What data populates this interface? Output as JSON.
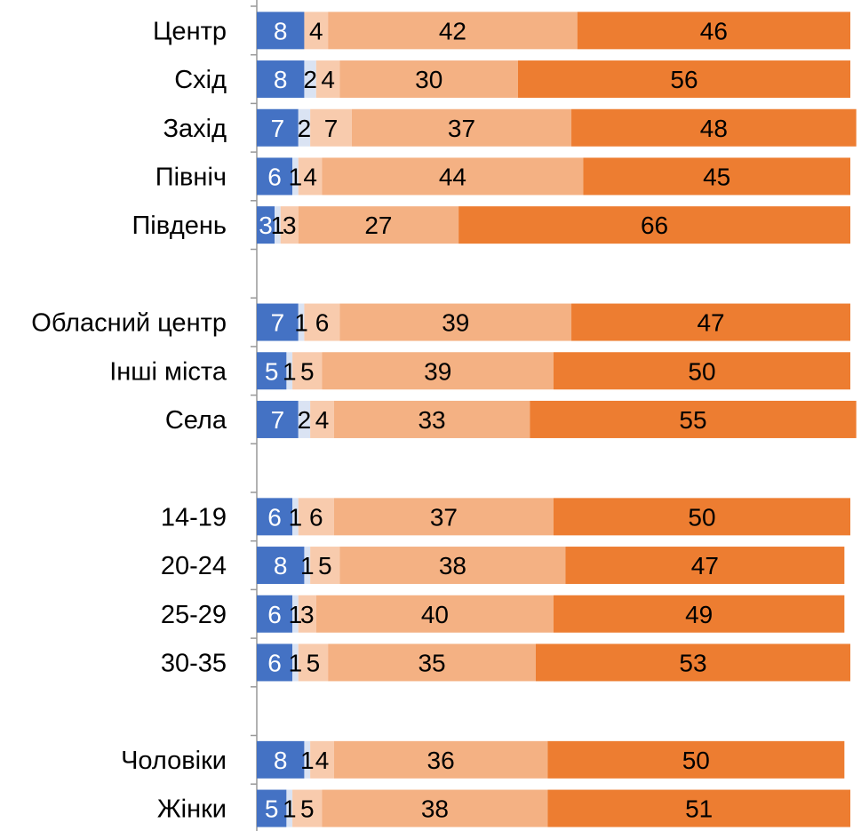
{
  "chart_data": {
    "type": "bar",
    "orientation": "horizontal",
    "stacked": true,
    "title": "",
    "xlabel": "",
    "ylabel": "",
    "xlim": [
      0,
      100
    ],
    "grid": false,
    "legend": "none",
    "categories": [
      "Центр",
      "Схід",
      "Захід",
      "Північ",
      "Південь",
      "",
      "Обласний центр",
      "Інші міста",
      "Села",
      "",
      "14-19",
      "20-24",
      "25-29",
      "30-35",
      "",
      "Чоловіки",
      "Жінки"
    ],
    "series": [
      {
        "color": "#4472C4",
        "label_color": "#ffffff",
        "values": [
          8,
          8,
          7,
          6,
          3,
          null,
          7,
          5,
          7,
          null,
          6,
          8,
          6,
          6,
          null,
          8,
          5
        ]
      },
      {
        "color": "#DAE3F3",
        "label_color": "#000000",
        "values": [
          null,
          2,
          2,
          1,
          1,
          null,
          1,
          1,
          2,
          null,
          1,
          1,
          1,
          1,
          null,
          1,
          1
        ]
      },
      {
        "color": "#F8CBAD",
        "label_color": "#000000",
        "values": [
          4,
          4,
          7,
          4,
          3,
          null,
          6,
          5,
          4,
          null,
          6,
          5,
          3,
          5,
          null,
          4,
          5
        ]
      },
      {
        "color": "#F4B183",
        "label_color": "#000000",
        "values": [
          42,
          30,
          37,
          44,
          27,
          null,
          39,
          39,
          33,
          null,
          37,
          38,
          40,
          35,
          null,
          36,
          38
        ]
      },
      {
        "color": "#ED7D31",
        "label_color": "#000000",
        "values": [
          46,
          56,
          48,
          45,
          66,
          null,
          47,
          50,
          55,
          null,
          50,
          47,
          49,
          53,
          null,
          50,
          51
        ]
      }
    ]
  }
}
